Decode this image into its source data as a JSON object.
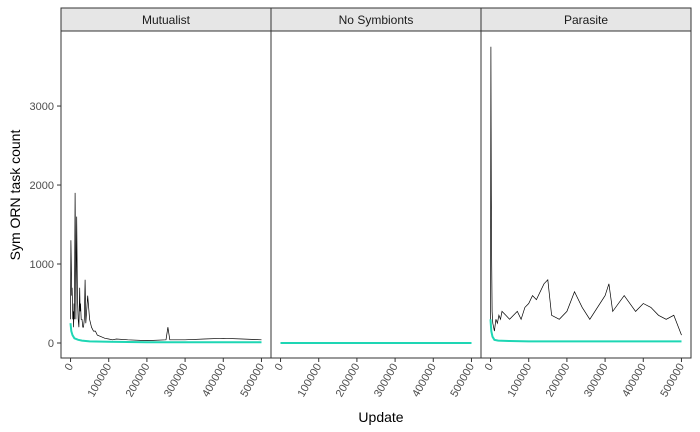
{
  "chart_data": {
    "type": "line",
    "facets": [
      {
        "name": "Mutualist",
        "raw_series": {
          "x": [
            0,
            1000,
            2000,
            3000,
            4000,
            5000,
            6000,
            7000,
            8000,
            9000,
            10000,
            12000,
            14000,
            16000,
            18000,
            20000,
            22000,
            24000,
            25000,
            26000,
            28000,
            30000,
            32000,
            34000,
            36000,
            38000,
            40000,
            45000,
            50000,
            55000,
            60000,
            65000,
            70000,
            80000,
            90000,
            100000,
            110000,
            120000,
            150000,
            200000,
            250000,
            255000,
            260000,
            300000,
            350000,
            400000,
            450000,
            500000
          ],
          "y": [
            300,
            1300,
            1000,
            600,
            700,
            500,
            300,
            400,
            200,
            500,
            300,
            1900,
            300,
            1600,
            600,
            300,
            200,
            700,
            400,
            500,
            300,
            300,
            200,
            200,
            300,
            800,
            250,
            600,
            300,
            200,
            150,
            150,
            100,
            80,
            60,
            50,
            40,
            50,
            40,
            30,
            40,
            200,
            40,
            40,
            50,
            60,
            50,
            40
          ]
        },
        "mean_series": {
          "x": [
            0,
            2000,
            5000,
            10000,
            20000,
            30000,
            50000,
            100000,
            200000,
            300000,
            400000,
            500000
          ],
          "y": [
            250,
            150,
            100,
            60,
            40,
            30,
            20,
            15,
            10,
            10,
            10,
            10
          ]
        }
      },
      {
        "name": "No Symbionts",
        "raw_series": {
          "x": [],
          "y": []
        },
        "mean_series": {
          "x": [
            0,
            500000
          ],
          "y": [
            0,
            0
          ]
        }
      },
      {
        "name": "Parasite",
        "raw_series": {
          "x": [
            0,
            1000,
            2000,
            3000,
            4000,
            5000,
            6000,
            8000,
            10000,
            14000,
            18000,
            22000,
            26000,
            30000,
            40000,
            50000,
            60000,
            70000,
            80000,
            90000,
            100000,
            110000,
            120000,
            140000,
            150000,
            160000,
            180000,
            200000,
            220000,
            240000,
            260000,
            300000,
            310000,
            320000,
            350000,
            380000,
            400000,
            420000,
            440000,
            460000,
            480000,
            500000
          ],
          "y": [
            200,
            3750,
            1870,
            1000,
            400,
            300,
            250,
            200,
            150,
            300,
            250,
            350,
            300,
            400,
            350,
            300,
            350,
            400,
            300,
            450,
            500,
            600,
            550,
            750,
            800,
            350,
            300,
            400,
            650,
            450,
            300,
            600,
            750,
            400,
            600,
            400,
            500,
            450,
            350,
            300,
            350,
            100
          ]
        },
        "mean_series": {
          "x": [
            0,
            2000,
            5000,
            10000,
            20000,
            50000,
            100000,
            200000,
            300000,
            400000,
            500000
          ],
          "y": [
            300,
            150,
            80,
            40,
            30,
            25,
            20,
            20,
            20,
            20,
            20
          ]
        }
      }
    ],
    "xlabel": "Update",
    "ylabel": "Sym ORN task count",
    "xlim": [
      -25000,
      525000
    ],
    "ylim": [
      -190,
      3950
    ],
    "x_ticks": [
      0,
      100000,
      200000,
      300000,
      400000,
      500000
    ],
    "x_tick_labels": [
      "0",
      "100000",
      "200000",
      "300000",
      "400000",
      "500000"
    ],
    "y_ticks": [
      0,
      1000,
      2000,
      3000
    ],
    "y_tick_labels": [
      "0",
      "1000",
      "2000",
      "3000"
    ],
    "grid": false,
    "legend": "none",
    "colors": {
      "raw": "#000000",
      "mean": "#1ed6b4",
      "strip_background": "#e6e6e6",
      "panel_border": "#333333",
      "tick_text": "#4d4d4d"
    }
  }
}
